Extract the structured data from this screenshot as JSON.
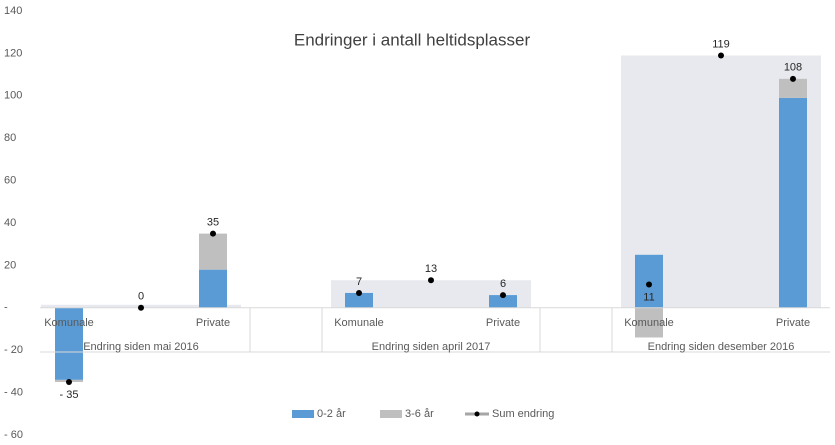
{
  "chart_data": {
    "type": "bar",
    "title": "Endringer i antall heltidsplasser",
    "categories": [
      "Komunale",
      null,
      "Private",
      "Komunale",
      null,
      "Private",
      "Komunale",
      null,
      "Private"
    ],
    "groups": [
      "Endring siden mai 2016",
      "Endring siden april 2017",
      "Endring siden desember 2016"
    ],
    "series": [
      {
        "name": "0-2 år",
        "color": "#5b9bd5",
        "values": [
          -34,
          null,
          18,
          7,
          null,
          6,
          25,
          null,
          99
        ]
      },
      {
        "name": "3-6 år",
        "color": "#bfbfbf",
        "values": [
          -1,
          null,
          17,
          0,
          null,
          0,
          -14,
          null,
          9
        ]
      },
      {
        "name": "Sum endring",
        "color": "#000000",
        "values": [
          -35,
          0,
          35,
          7,
          13,
          6,
          11,
          119,
          108
        ],
        "value_labels": [
          "- 35",
          "0",
          "35",
          "7",
          "13",
          "6",
          "11",
          "119",
          "108"
        ]
      }
    ],
    "ylim": [
      -60,
      140
    ],
    "yticks": [
      {
        "value": -60,
        "label": "- 60"
      },
      {
        "value": -40,
        "label": "- 40"
      },
      {
        "value": -20,
        "label": "- 20"
      },
      {
        "value": 0,
        "label": "-"
      },
      20,
      40,
      60,
      80,
      100,
      120,
      140
    ],
    "legend": "bottom"
  }
}
